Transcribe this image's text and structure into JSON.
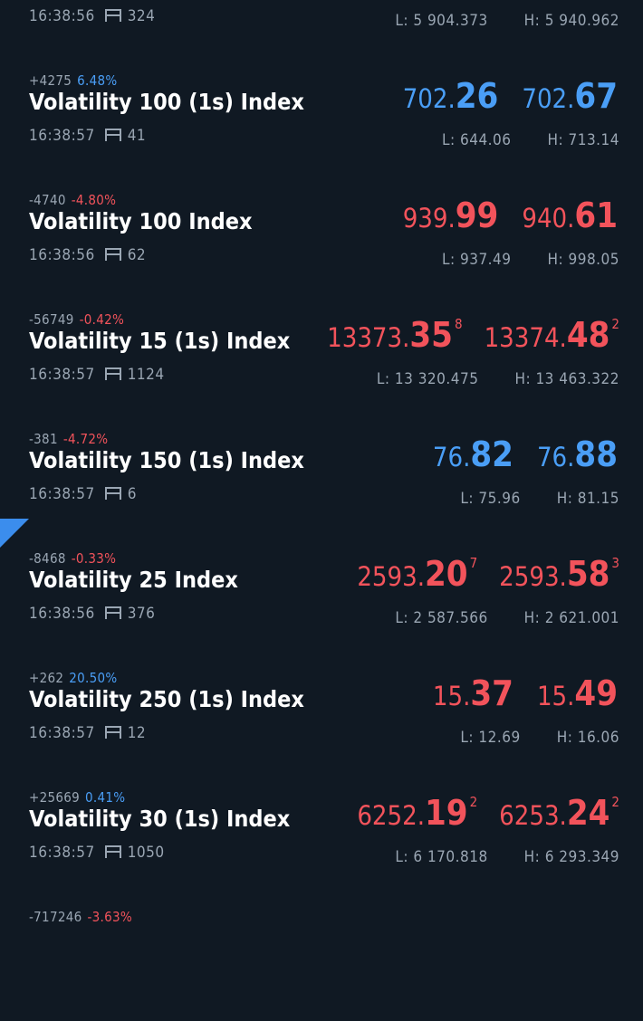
{
  "rows": [
    {
      "change": "",
      "change_pct": "",
      "trend": "up",
      "name": "",
      "time": "16:38:56",
      "volume": "324",
      "bid_base": "",
      "bid_big": "",
      "bid_sup": "",
      "ask_base": "",
      "ask_big": "",
      "ask_sup": "",
      "low": "L: 5 904.373",
      "high": "H: 5 940.962"
    },
    {
      "change": "+4275",
      "change_pct": "6.48%",
      "trend": "up",
      "name": "Volatility 100 (1s) Index",
      "time": "16:38:57",
      "volume": "41",
      "bid_base": "702.",
      "bid_big": "26",
      "bid_sup": "",
      "ask_base": "702.",
      "ask_big": "67",
      "ask_sup": "",
      "low": "L: 644.06",
      "high": "H: 713.14"
    },
    {
      "change": "-4740",
      "change_pct": "-4.80%",
      "trend": "down",
      "name": "Volatility 100 Index",
      "time": "16:38:56",
      "volume": "62",
      "bid_base": "939.",
      "bid_big": "99",
      "bid_sup": "",
      "ask_base": "940.",
      "ask_big": "61",
      "ask_sup": "",
      "low": "L: 937.49",
      "high": "H: 998.05"
    },
    {
      "change": "-56749",
      "change_pct": "-0.42%",
      "trend": "down",
      "name": "Volatility 15 (1s) Index",
      "time": "16:38:57",
      "volume": "1124",
      "bid_base": "13373.",
      "bid_big": "35",
      "bid_sup": "8",
      "ask_base": "13374.",
      "ask_big": "48",
      "ask_sup": "2",
      "low": "L: 13 320.475",
      "high": "H: 13 463.322"
    },
    {
      "change": "-381",
      "change_pct": "-4.72%",
      "trend": "up",
      "name": "Volatility 150 (1s) Index",
      "time": "16:38:57",
      "volume": "6",
      "bid_base": "76.",
      "bid_big": "82",
      "bid_sup": "",
      "ask_base": "76.",
      "ask_big": "88",
      "ask_sup": "",
      "low": "L: 75.96",
      "high": "H: 81.15"
    },
    {
      "change": "-8468",
      "change_pct": "-0.33%",
      "trend": "down",
      "name": "Volatility 25 Index",
      "time": "16:38:56",
      "volume": "376",
      "bid_base": "2593.",
      "bid_big": "20",
      "bid_sup": "7",
      "ask_base": "2593.",
      "ask_big": "58",
      "ask_sup": "3",
      "low": "L: 2 587.566",
      "high": "H: 2 621.001"
    },
    {
      "change": "+262",
      "change_pct": "20.50%",
      "trend": "down",
      "name": "Volatility 250 (1s) Index",
      "time": "16:38:57",
      "volume": "12",
      "bid_base": "15.",
      "bid_big": "37",
      "bid_sup": "",
      "ask_base": "15.",
      "ask_big": "49",
      "ask_sup": "",
      "low": "L: 12.69",
      "high": "H: 16.06"
    },
    {
      "change": "+25669",
      "change_pct": "0.41%",
      "trend": "down",
      "name": "Volatility 30 (1s) Index",
      "time": "16:38:57",
      "volume": "1050",
      "bid_base": "6252.",
      "bid_big": "19",
      "bid_sup": "2",
      "ask_base": "6253.",
      "ask_big": "24",
      "ask_sup": "2",
      "low": "L: 6 170.818",
      "high": "H: 6 293.349"
    },
    {
      "change": "-717246",
      "change_pct": "-3.63%",
      "trend": "down",
      "name": "",
      "time": "",
      "volume": "",
      "bid_base": "",
      "bid_big": "",
      "bid_sup": "",
      "ask_base": "",
      "ask_big": "",
      "ask_sup": "",
      "low": "",
      "high": ""
    }
  ],
  "colors": {
    "background": "#101923",
    "up": "#4a9ef6",
    "down": "#f2535b",
    "muted": "#9aa6b3"
  },
  "icons": {
    "volume": "volume-bars-icon",
    "corner": "selected-corner-marker"
  }
}
